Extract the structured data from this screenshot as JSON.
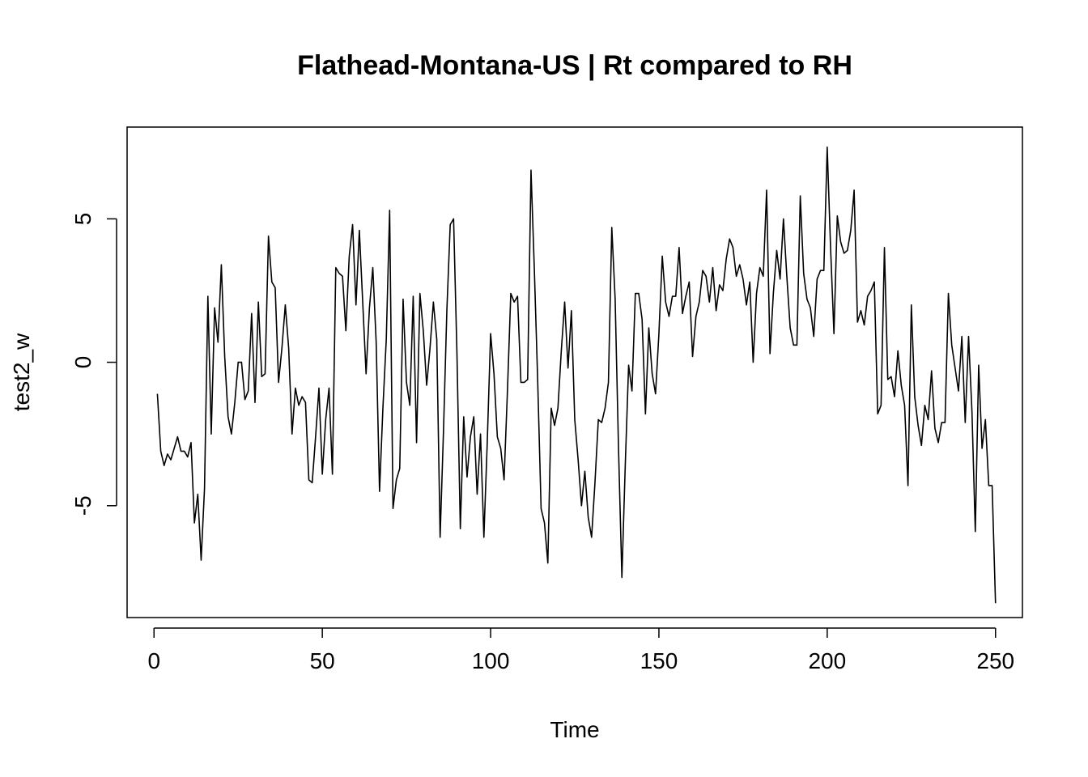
{
  "chart_data": {
    "type": "line",
    "title": "Flathead-Montana-US | Rt compared to RH",
    "xlabel": "Time",
    "ylabel": "test2_w",
    "xlim": [
      -8,
      258
    ],
    "ylim": [
      -8.9,
      8.2
    ],
    "x_ticks": [
      0,
      50,
      100,
      150,
      200,
      250
    ],
    "y_ticks": [
      -5,
      0,
      5
    ],
    "grid": false,
    "legend": "none",
    "series": [
      {
        "x_start": 1,
        "values": [
          -1.1,
          -3.1,
          -3.6,
          -3.2,
          -3.4,
          -3.0,
          -2.6,
          -3.1,
          -3.1,
          -3.3,
          -2.8,
          -5.6,
          -4.6,
          -6.9,
          -4.4,
          2.3,
          -2.5,
          1.9,
          0.7,
          3.4,
          0.2,
          -1.9,
          -2.5,
          -1.4,
          0.0,
          0.0,
          -1.3,
          -1.0,
          1.7,
          -1.4,
          2.1,
          -0.5,
          -0.4,
          4.4,
          2.8,
          2.6,
          -0.7,
          0.5,
          2.0,
          0.5,
          -2.5,
          -0.9,
          -1.5,
          -1.2,
          -1.4,
          -4.1,
          -4.2,
          -2.6,
          -0.9,
          -3.9,
          -2.0,
          -0.9,
          -3.9,
          3.3,
          3.1,
          3.0,
          1.1,
          3.7,
          4.8,
          2.0,
          4.6,
          2.1,
          -0.4,
          1.9,
          3.3,
          0.7,
          -4.5,
          -1.6,
          0.8,
          5.3,
          -5.1,
          -4.1,
          -3.7,
          2.2,
          -0.7,
          -1.5,
          2.3,
          -2.8,
          2.4,
          1.1,
          -0.8,
          0.5,
          2.1,
          0.8,
          -6.1,
          -2.4,
          1.8,
          4.8,
          5.0,
          0.3,
          -5.8,
          -1.9,
          -4.0,
          -2.6,
          -1.9,
          -4.6,
          -2.5,
          -6.1,
          -2.8,
          1.0,
          -0.4,
          -2.6,
          -3.0,
          -4.1,
          -1.0,
          2.4,
          2.1,
          2.3,
          -0.7,
          -0.7,
          -0.6,
          6.7,
          3.2,
          -0.7,
          -5.1,
          -5.6,
          -7.0,
          -1.6,
          -2.2,
          -1.6,
          0.4,
          2.1,
          -0.2,
          1.8,
          -2.0,
          -3.4,
          -5.0,
          -3.8,
          -5.4,
          -6.1,
          -4.2,
          -2.0,
          -2.1,
          -1.6,
          -0.7,
          4.7,
          2.2,
          -3.0,
          -7.5,
          -3.6,
          -0.1,
          -1.0,
          2.4,
          2.4,
          1.5,
          -1.8,
          1.2,
          -0.4,
          -1.1,
          1.0,
          3.7,
          2.1,
          1.6,
          2.3,
          2.3,
          4.0,
          1.7,
          2.3,
          2.8,
          0.2,
          1.6,
          2.1,
          3.2,
          3.0,
          2.1,
          3.3,
          1.8,
          2.7,
          2.5,
          3.6,
          4.3,
          4.0,
          3.0,
          3.4,
          2.9,
          2.0,
          2.8,
          0.0,
          2.4,
          3.3,
          3.0,
          6.0,
          0.3,
          2.4,
          3.9,
          2.9,
          5.0,
          3.0,
          1.2,
          0.6,
          0.6,
          5.8,
          3.1,
          2.2,
          1.9,
          0.9,
          2.9,
          3.2,
          3.2,
          7.5,
          4.0,
          1.0,
          5.1,
          4.2,
          3.8,
          3.9,
          4.6,
          6.0,
          1.4,
          1.8,
          1.3,
          2.3,
          2.5,
          2.8,
          -1.8,
          -1.5,
          4.0,
          -0.6,
          -0.5,
          -1.2,
          0.4,
          -0.8,
          -1.5,
          -4.3,
          2.0,
          -1.2,
          -2.2,
          -2.9,
          -1.5,
          -2.0,
          -0.3,
          -2.3,
          -2.8,
          -2.1,
          -2.1,
          2.4,
          0.6,
          -0.2,
          -1.0,
          0.9,
          -2.1,
          0.9,
          -1.7,
          -5.9,
          -0.1,
          -3.0,
          -2.0,
          -4.3,
          -4.3,
          -8.4
        ]
      }
    ]
  }
}
